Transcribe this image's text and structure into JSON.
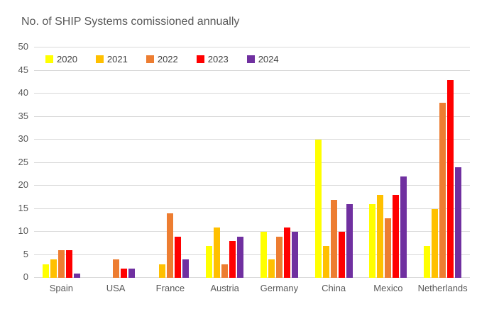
{
  "chart_data": {
    "type": "bar",
    "title": "No. of SHIP Systems comissioned annually",
    "xlabel": "",
    "ylabel": "",
    "categories": [
      "Spain",
      "USA",
      "France",
      "Austria",
      "Germany",
      "China",
      "Mexico",
      "Netherlands"
    ],
    "series": [
      {
        "name": "2020",
        "color": "#FFFF00",
        "values": [
          3,
          0,
          0,
          7,
          10,
          30,
          16,
          7
        ]
      },
      {
        "name": "2021",
        "color": "#FFC000",
        "values": [
          4,
          0,
          3,
          11,
          4,
          7,
          18,
          15
        ]
      },
      {
        "name": "2022",
        "color": "#ED7D31",
        "values": [
          6,
          4,
          14,
          3,
          9,
          17,
          13,
          38
        ]
      },
      {
        "name": "2023",
        "color": "#FF0000",
        "values": [
          6,
          2,
          9,
          8,
          11,
          10,
          18,
          43
        ]
      },
      {
        "name": "2024",
        "color": "#7030A0",
        "values": [
          1,
          2,
          4,
          9,
          10,
          16,
          22,
          24
        ]
      }
    ],
    "ylim": [
      0,
      50
    ],
    "ytick_step": 5,
    "yticks": [
      0,
      5,
      10,
      15,
      20,
      25,
      30,
      35,
      40,
      45,
      50
    ],
    "grid": true,
    "legend_position": "top"
  },
  "colors": {
    "background": "#FFFFFF",
    "title_text": "#595959",
    "axis_text": "#595959",
    "legend_text": "#404040",
    "gridline": "#D9D9D9"
  }
}
